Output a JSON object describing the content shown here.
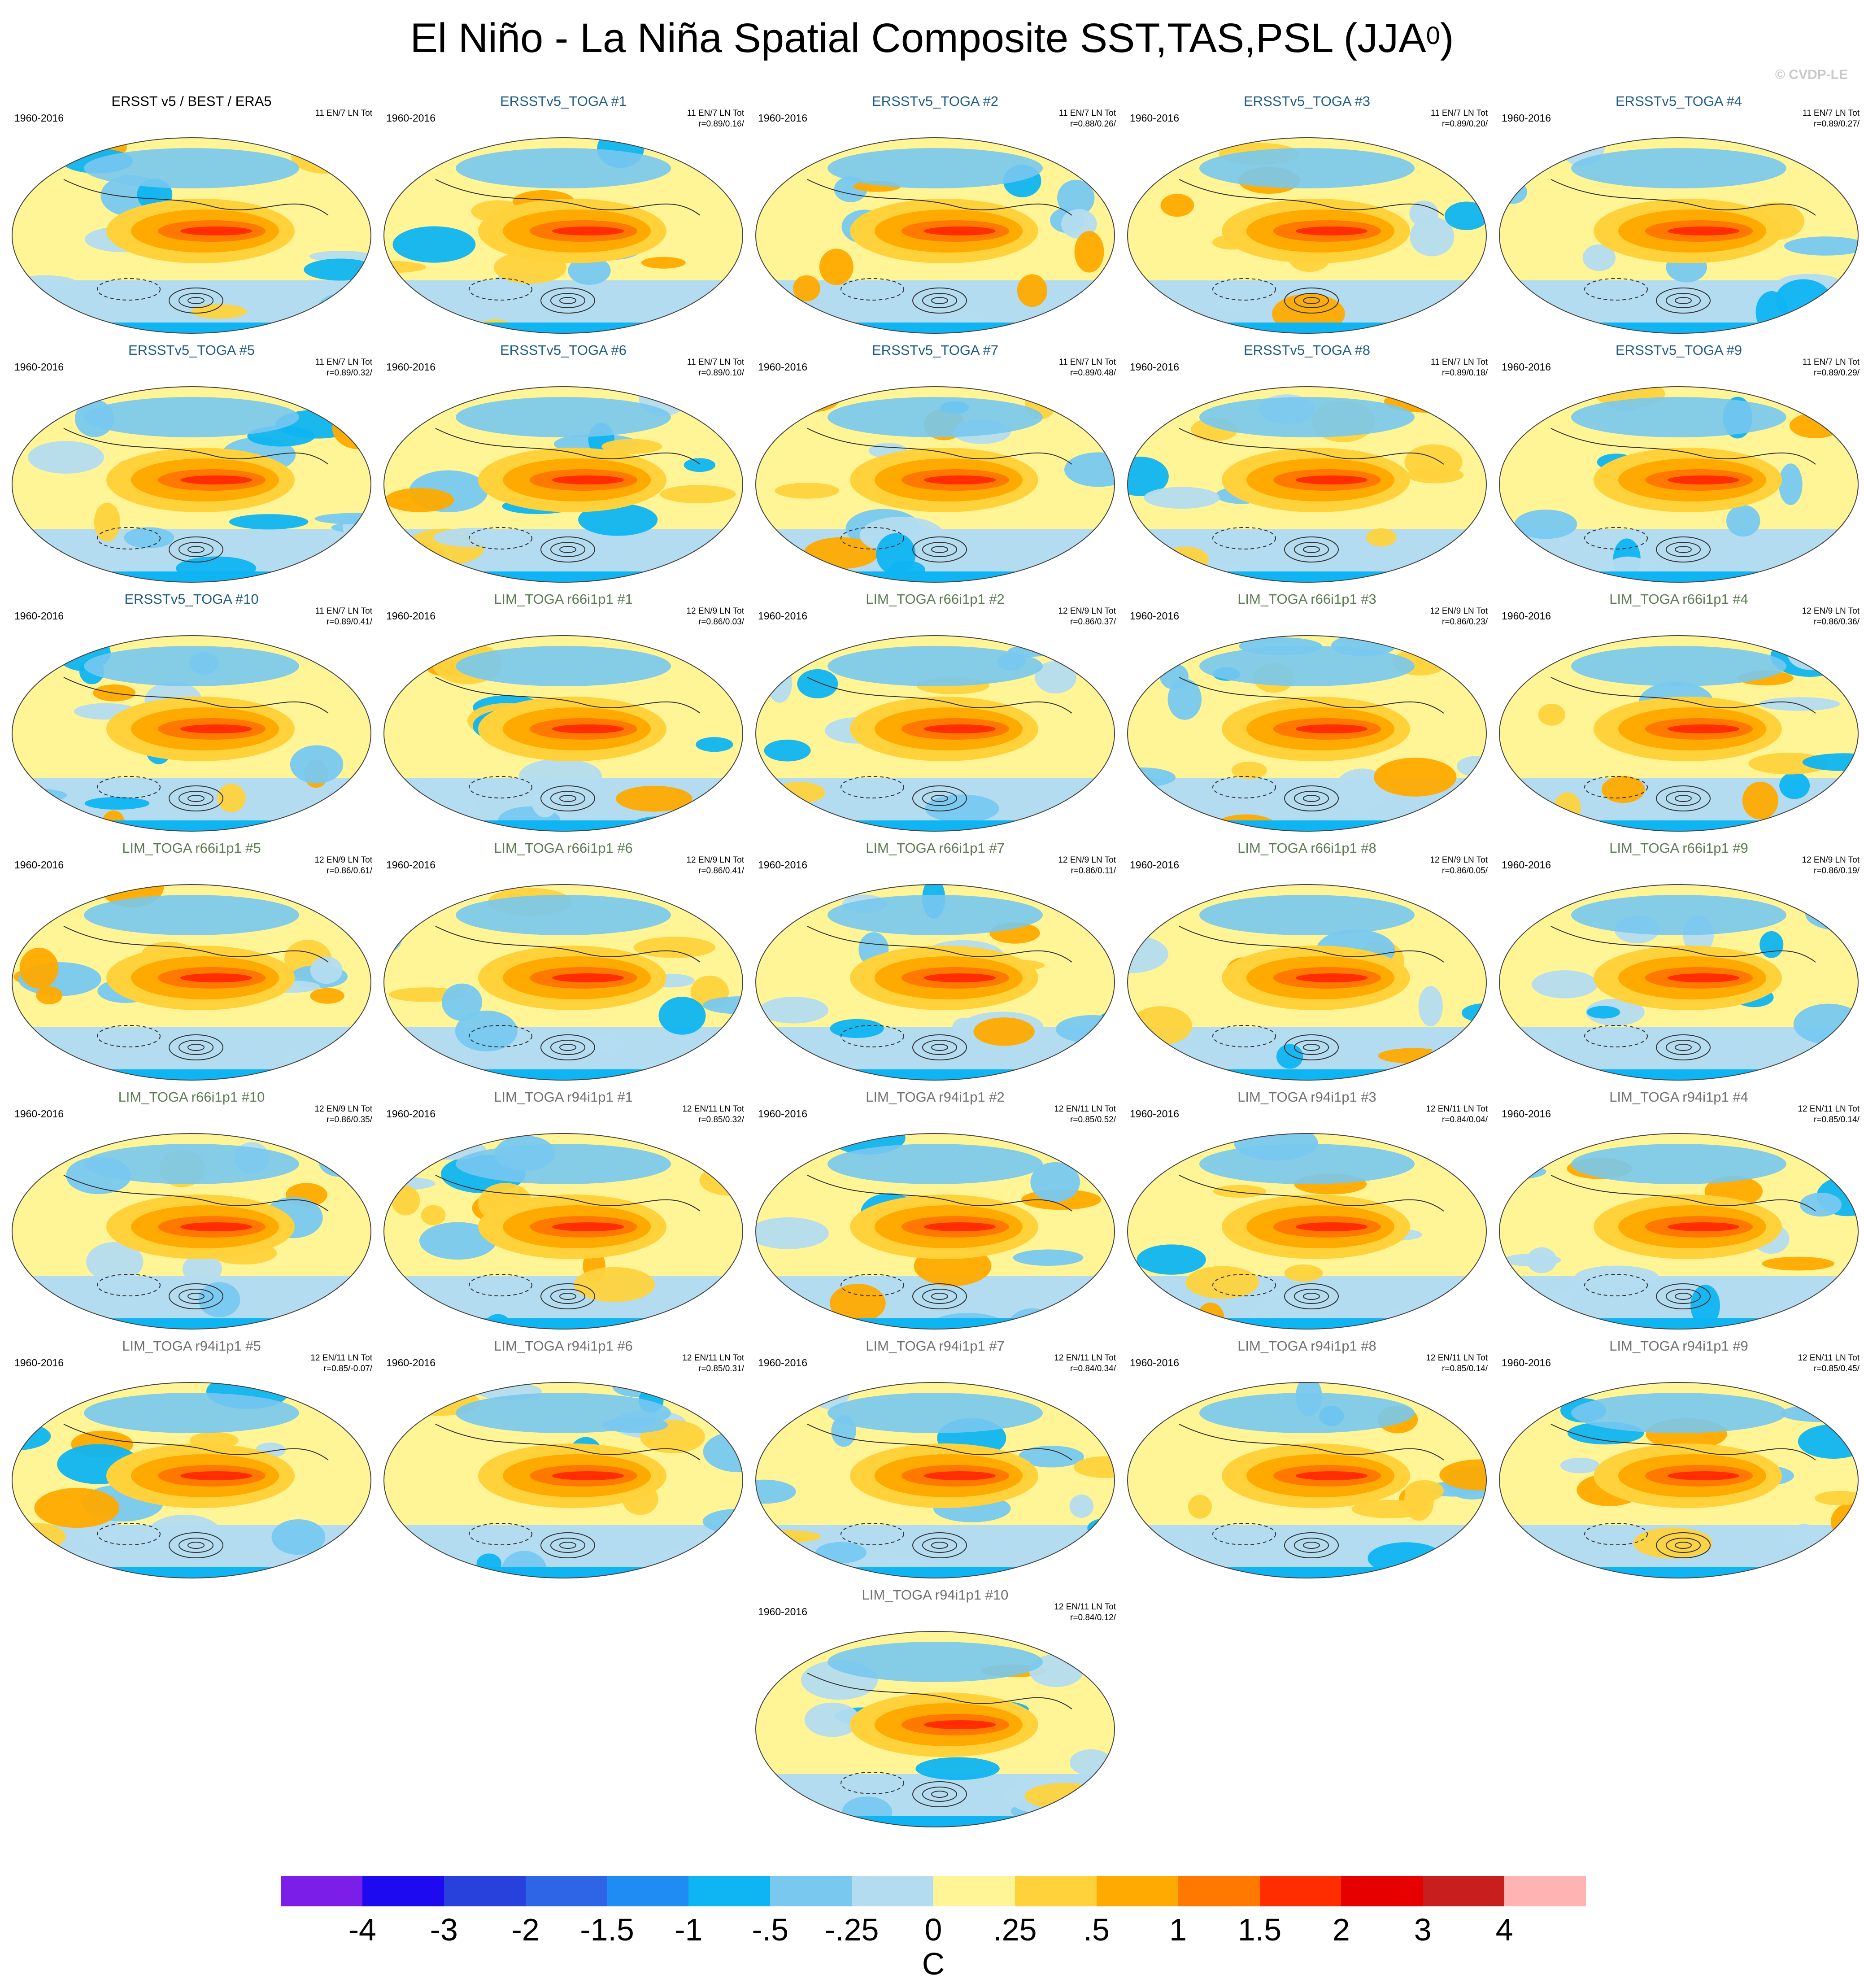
{
  "title": "El Niño - La Niña Spatial Composite SST,TAS,PSL (JJA",
  "title_superscript": "0",
  "title_close": ")",
  "watermark": "© CVDP-LE",
  "colors": {
    "obs_title": "#000000",
    "erss_title": "#1f5c86",
    "r66_title": "#5a7c50",
    "r94_title": "#707070"
  },
  "chart_data": {
    "type": "heatmap",
    "description_type": "map panel grid",
    "colorbar": {
      "units": "C",
      "tick_labels": [
        "-4",
        "-3",
        "-2",
        "-1.5",
        "-1",
        "-.5",
        "-.25",
        "0",
        ".25",
        ".5",
        "1",
        "1.5",
        "2",
        "3",
        "4"
      ],
      "colors": [
        "#7b1fe8",
        "#1e0af0",
        "#2840dc",
        "#2e64e6",
        "#1e8cf2",
        "#0fb4f2",
        "#78c8f0",
        "#b4dcf0",
        "#fff596",
        "#ffd23c",
        "#ffaa00",
        "#ff7800",
        "#ff2d00",
        "#e60000",
        "#c81e1e",
        "#ffb4b4"
      ]
    },
    "panels": [
      {
        "title": "ERSST v5 / BEST / ERA5",
        "title_kind": "obs",
        "years": "1960-2016",
        "stats1": "11 EN/7 LN Tot",
        "stats2": ""
      },
      {
        "title": "ERSSTv5_TOGA #1",
        "title_kind": "erss",
        "years": "1960-2016",
        "stats1": "11 EN/7 LN Tot",
        "stats2": "r=0.89/0.16/"
      },
      {
        "title": "ERSSTv5_TOGA #2",
        "title_kind": "erss",
        "years": "1960-2016",
        "stats1": "11 EN/7 LN Tot",
        "stats2": "r=0.88/0.26/"
      },
      {
        "title": "ERSSTv5_TOGA #3",
        "title_kind": "erss",
        "years": "1960-2016",
        "stats1": "11 EN/7 LN Tot",
        "stats2": "r=0.89/0.20/"
      },
      {
        "title": "ERSSTv5_TOGA #4",
        "title_kind": "erss",
        "years": "1960-2016",
        "stats1": "11 EN/7 LN Tot",
        "stats2": "r=0.89/0.27/"
      },
      {
        "title": "ERSSTv5_TOGA #5",
        "title_kind": "erss",
        "years": "1960-2016",
        "stats1": "11 EN/7 LN Tot",
        "stats2": "r=0.89/0.32/"
      },
      {
        "title": "ERSSTv5_TOGA #6",
        "title_kind": "erss",
        "years": "1960-2016",
        "stats1": "11 EN/7 LN Tot",
        "stats2": "r=0.89/0.10/"
      },
      {
        "title": "ERSSTv5_TOGA #7",
        "title_kind": "erss",
        "years": "1960-2016",
        "stats1": "11 EN/7 LN Tot",
        "stats2": "r=0.89/0.48/"
      },
      {
        "title": "ERSSTv5_TOGA #8",
        "title_kind": "erss",
        "years": "1960-2016",
        "stats1": "11 EN/7 LN Tot",
        "stats2": "r=0.89/0.18/"
      },
      {
        "title": "ERSSTv5_TOGA #9",
        "title_kind": "erss",
        "years": "1960-2016",
        "stats1": "11 EN/7 LN Tot",
        "stats2": "r=0.89/0.29/"
      },
      {
        "title": "ERSSTv5_TOGA #10",
        "title_kind": "erss",
        "years": "1960-2016",
        "stats1": "11 EN/7 LN Tot",
        "stats2": "r=0.89/0.41/"
      },
      {
        "title": "LIM_TOGA r66i1p1 #1",
        "title_kind": "r66",
        "years": "1960-2016",
        "stats1": "12 EN/9 LN Tot",
        "stats2": "r=0.86/0.03/"
      },
      {
        "title": "LIM_TOGA r66i1p1 #2",
        "title_kind": "r66",
        "years": "1960-2016",
        "stats1": "12 EN/9 LN Tot",
        "stats2": "r=0.86/0.37/"
      },
      {
        "title": "LIM_TOGA r66i1p1 #3",
        "title_kind": "r66",
        "years": "1960-2016",
        "stats1": "12 EN/9 LN Tot",
        "stats2": "r=0.86/0.23/"
      },
      {
        "title": "LIM_TOGA r66i1p1 #4",
        "title_kind": "r66",
        "years": "1960-2016",
        "stats1": "12 EN/9 LN Tot",
        "stats2": "r=0.86/0.36/"
      },
      {
        "title": "LIM_TOGA r66i1p1 #5",
        "title_kind": "r66",
        "years": "1960-2016",
        "stats1": "12 EN/9 LN Tot",
        "stats2": "r=0.86/0.61/"
      },
      {
        "title": "LIM_TOGA r66i1p1 #6",
        "title_kind": "r66",
        "years": "1960-2016",
        "stats1": "12 EN/9 LN Tot",
        "stats2": "r=0.86/0.41/"
      },
      {
        "title": "LIM_TOGA r66i1p1 #7",
        "title_kind": "r66",
        "years": "1960-2016",
        "stats1": "12 EN/9 LN Tot",
        "stats2": "r=0.86/0.11/"
      },
      {
        "title": "LIM_TOGA r66i1p1 #8",
        "title_kind": "r66",
        "years": "1960-2016",
        "stats1": "12 EN/9 LN Tot",
        "stats2": "r=0.86/0.05/"
      },
      {
        "title": "LIM_TOGA r66i1p1 #9",
        "title_kind": "r66",
        "years": "1960-2016",
        "stats1": "12 EN/9 LN Tot",
        "stats2": "r=0.86/0.19/"
      },
      {
        "title": "LIM_TOGA r66i1p1 #10",
        "title_kind": "r66",
        "years": "1960-2016",
        "stats1": "12 EN/9 LN Tot",
        "stats2": "r=0.86/0.35/"
      },
      {
        "title": "LIM_TOGA r94i1p1 #1",
        "title_kind": "r94",
        "years": "1960-2016",
        "stats1": "12 EN/11 LN Tot",
        "stats2": "r=0.85/0.32/"
      },
      {
        "title": "LIM_TOGA r94i1p1 #2",
        "title_kind": "r94",
        "years": "1960-2016",
        "stats1": "12 EN/11 LN Tot",
        "stats2": "r=0.85/0.52/"
      },
      {
        "title": "LIM_TOGA r94i1p1 #3",
        "title_kind": "r94",
        "years": "1960-2016",
        "stats1": "12 EN/11 LN Tot",
        "stats2": "r=0.84/0.04/"
      },
      {
        "title": "LIM_TOGA r94i1p1 #4",
        "title_kind": "r94",
        "years": "1960-2016",
        "stats1": "12 EN/11 LN Tot",
        "stats2": "r=0.85/0.14/"
      },
      {
        "title": "LIM_TOGA r94i1p1 #5",
        "title_kind": "r94",
        "years": "1960-2016",
        "stats1": "12 EN/11 LN Tot",
        "stats2": "r=0.85/-0.07/"
      },
      {
        "title": "LIM_TOGA r94i1p1 #6",
        "title_kind": "r94",
        "years": "1960-2016",
        "stats1": "12 EN/11 LN Tot",
        "stats2": "r=0.85/0.31/"
      },
      {
        "title": "LIM_TOGA r94i1p1 #7",
        "title_kind": "r94",
        "years": "1960-2016",
        "stats1": "12 EN/11 LN Tot",
        "stats2": "r=0.84/0.34/"
      },
      {
        "title": "LIM_TOGA r94i1p1 #8",
        "title_kind": "r94",
        "years": "1960-2016",
        "stats1": "12 EN/11 LN Tot",
        "stats2": "r=0.85/0.14/"
      },
      {
        "title": "LIM_TOGA r94i1p1 #9",
        "title_kind": "r94",
        "years": "1960-2016",
        "stats1": "12 EN/11 LN Tot",
        "stats2": "r=0.85/0.45/"
      },
      {
        "title": "LIM_TOGA r94i1p1 #10",
        "title_kind": "r94",
        "years": "1960-2016",
        "stats1": "12 EN/11 LN Tot",
        "stats2": "r=0.84/0.12/"
      }
    ]
  }
}
